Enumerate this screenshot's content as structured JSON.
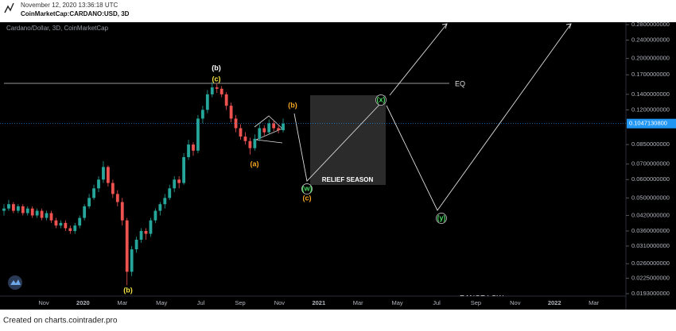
{
  "header": {
    "timestamp": "November 12, 2020 13:36:18 UTC",
    "symbol": "CoinMarketCap:CARDANO:USD, 3D"
  },
  "chart_data": {
    "type": "candlestick",
    "title": "Cardano/Dollar, 3D, CoinMarketCap",
    "log_scale": true,
    "up_color": "#26a69a",
    "down_color": "#ef5350",
    "candles": [
      [
        0.044,
        0.047,
        0.042,
        0.045
      ],
      [
        0.045,
        0.049,
        0.044,
        0.047
      ],
      [
        0.047,
        0.048,
        0.043,
        0.044
      ],
      [
        0.044,
        0.047,
        0.043,
        0.046
      ],
      [
        0.046,
        0.047,
        0.042,
        0.043
      ],
      [
        0.043,
        0.046,
        0.042,
        0.045
      ],
      [
        0.045,
        0.046,
        0.041,
        0.042
      ],
      [
        0.042,
        0.045,
        0.041,
        0.044
      ],
      [
        0.044,
        0.045,
        0.04,
        0.041
      ],
      [
        0.041,
        0.044,
        0.04,
        0.043
      ],
      [
        0.043,
        0.044,
        0.039,
        0.04
      ],
      [
        0.04,
        0.041,
        0.037,
        0.038
      ],
      [
        0.038,
        0.04,
        0.037,
        0.039
      ],
      [
        0.039,
        0.04,
        0.036,
        0.037
      ],
      [
        0.037,
        0.038,
        0.035,
        0.036
      ],
      [
        0.036,
        0.039,
        0.035,
        0.038
      ],
      [
        0.038,
        0.042,
        0.037,
        0.041
      ],
      [
        0.041,
        0.047,
        0.04,
        0.046
      ],
      [
        0.046,
        0.052,
        0.045,
        0.05
      ],
      [
        0.05,
        0.057,
        0.049,
        0.055
      ],
      [
        0.055,
        0.062,
        0.053,
        0.06
      ],
      [
        0.06,
        0.072,
        0.058,
        0.068
      ],
      [
        0.068,
        0.069,
        0.056,
        0.058
      ],
      [
        0.058,
        0.06,
        0.05,
        0.052
      ],
      [
        0.052,
        0.054,
        0.046,
        0.048
      ],
      [
        0.048,
        0.05,
        0.038,
        0.04
      ],
      [
        0.04,
        0.041,
        0.021,
        0.024
      ],
      [
        0.024,
        0.031,
        0.023,
        0.03
      ],
      [
        0.03,
        0.034,
        0.029,
        0.033
      ],
      [
        0.033,
        0.037,
        0.032,
        0.036
      ],
      [
        0.036,
        0.037,
        0.033,
        0.035
      ],
      [
        0.035,
        0.041,
        0.034,
        0.04
      ],
      [
        0.04,
        0.045,
        0.039,
        0.044
      ],
      [
        0.044,
        0.048,
        0.042,
        0.047
      ],
      [
        0.047,
        0.052,
        0.045,
        0.05
      ],
      [
        0.05,
        0.057,
        0.049,
        0.055
      ],
      [
        0.055,
        0.062,
        0.053,
        0.06
      ],
      [
        0.06,
        0.062,
        0.055,
        0.058
      ],
      [
        0.058,
        0.078,
        0.057,
        0.075
      ],
      [
        0.075,
        0.089,
        0.073,
        0.085
      ],
      [
        0.085,
        0.087,
        0.076,
        0.08
      ],
      [
        0.08,
        0.114,
        0.078,
        0.11
      ],
      [
        0.11,
        0.125,
        0.105,
        0.12
      ],
      [
        0.12,
        0.146,
        0.116,
        0.14
      ],
      [
        0.14,
        0.158,
        0.136,
        0.15
      ],
      [
        0.15,
        0.156,
        0.142,
        0.148
      ],
      [
        0.148,
        0.152,
        0.136,
        0.14
      ],
      [
        0.14,
        0.143,
        0.12,
        0.125
      ],
      [
        0.125,
        0.129,
        0.106,
        0.11
      ],
      [
        0.11,
        0.114,
        0.096,
        0.1
      ],
      [
        0.1,
        0.104,
        0.089,
        0.092
      ],
      [
        0.092,
        0.096,
        0.085,
        0.088
      ],
      [
        0.088,
        0.091,
        0.077,
        0.082
      ],
      [
        0.082,
        0.094,
        0.08,
        0.09
      ],
      [
        0.09,
        0.104,
        0.088,
        0.1
      ],
      [
        0.1,
        0.103,
        0.093,
        0.096
      ],
      [
        0.096,
        0.109,
        0.094,
        0.105
      ],
      [
        0.105,
        0.108,
        0.097,
        0.1
      ],
      [
        0.1,
        0.104,
        0.095,
        0.098
      ],
      [
        0.098,
        0.11,
        0.096,
        0.1047
      ]
    ],
    "ylim": [
      0.01885,
      0.2867
    ],
    "yticks": [
      {
        "value": 0.28,
        "label": "0.2800000000"
      },
      {
        "value": 0.24,
        "label": "0.2400000000"
      },
      {
        "value": 0.2,
        "label": "0.2000000000"
      },
      {
        "value": 0.17,
        "label": "0.1700000000"
      },
      {
        "value": 0.14,
        "label": "0.1400000000"
      },
      {
        "value": 0.12,
        "label": "0.1200000000"
      },
      {
        "value": 0.085,
        "label": "0.0850000000"
      },
      {
        "value": 0.07,
        "label": "0.0700000000"
      },
      {
        "value": 0.06,
        "label": "0.0600000000"
      },
      {
        "value": 0.05,
        "label": "0.0500000000"
      },
      {
        "value": 0.042,
        "label": "0.0420000000"
      },
      {
        "value": 0.036,
        "label": "0.0360000000"
      },
      {
        "value": 0.031,
        "label": "0.0310000000"
      },
      {
        "value": 0.026,
        "label": "0.0260000000"
      },
      {
        "value": 0.0225,
        "label": "0.0225000000"
      },
      {
        "value": 0.0193,
        "label": "0.0193000000"
      }
    ],
    "xticks": [
      "Nov",
      "2020",
      "Mar",
      "May",
      "Jul",
      "Sep",
      "Nov",
      "2021",
      "Mar",
      "May",
      "Jul",
      "Sep",
      "Nov",
      "2022",
      "Mar"
    ],
    "last_price": {
      "value": 0.10471308,
      "label": "0.1047130800",
      "color": "#2196f3"
    },
    "annotations": [
      {
        "text": "(b)",
        "color": "#ffffff"
      },
      {
        "text": "(c)",
        "color": "#f5e642"
      },
      {
        "text": "(b)",
        "color": "#f5a623"
      },
      {
        "text": "(a)",
        "color": "#f5a623"
      },
      {
        "text": "(x)",
        "color": "#4cd964"
      },
      {
        "text": "(w)",
        "color": "#4cd964"
      },
      {
        "text": "(c)",
        "color": "#f5a623"
      },
      {
        "text": "(y)",
        "color": "#4cd964"
      },
      {
        "text": "(b)",
        "color": "#f5e642"
      }
    ],
    "levels": [
      "EQ",
      "RANGE LOW"
    ],
    "box_label": "RELIEF SEASON"
  },
  "footer": "Created on charts.cointrader.pro"
}
